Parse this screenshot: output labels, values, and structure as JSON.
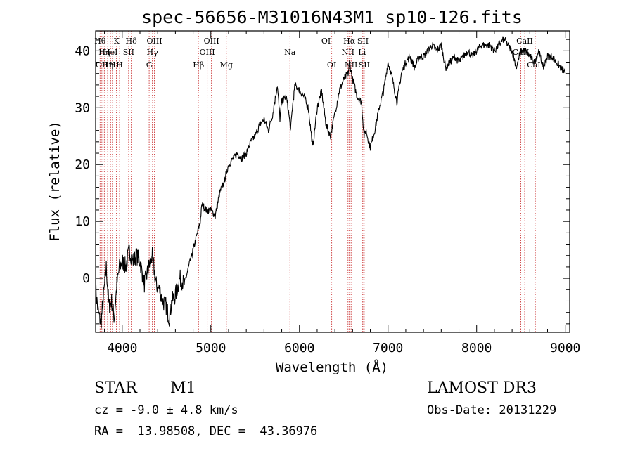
{
  "chart_data": {
    "type": "line",
    "title": "spec-56656-M31016N43M1_sp10-126.fits",
    "xlabel": "Wavelength (Å)",
    "ylabel": "Flux (relative)",
    "xlim": [
      3700,
      9050
    ],
    "ylim": [
      -9.5,
      43.5
    ],
    "x_ticks": [
      4000,
      5000,
      6000,
      7000,
      8000,
      9000
    ],
    "y_ticks": [
      0,
      10,
      20,
      30,
      40
    ],
    "grid": false,
    "series": [
      {
        "x": [
          3700,
          3730,
          3760,
          3790,
          3820,
          3850,
          3880,
          3910,
          3940,
          3970,
          4000,
          4040,
          4080,
          4120,
          4160,
          4200,
          4250,
          4300,
          4340,
          4380,
          4420,
          4460,
          4500,
          4530,
          4560,
          4600,
          4650,
          4700,
          4750,
          4800,
          4850,
          4880,
          4900,
          4950,
          5000,
          5050,
          5100,
          5150,
          5200,
          5250,
          5300,
          5350,
          5400,
          5450,
          5500,
          5550,
          5600,
          5650,
          5700,
          5750,
          5780,
          5800,
          5850,
          5880,
          5900,
          5920,
          5950,
          6000,
          6050,
          6100,
          6150,
          6200,
          6250,
          6300,
          6350,
          6400,
          6450,
          6500,
          6550,
          6565,
          6600,
          6650,
          6700,
          6730,
          6750,
          6800,
          6850,
          6900,
          6950,
          7000,
          7050,
          7100,
          7150,
          7200,
          7250,
          7300,
          7350,
          7400,
          7450,
          7500,
          7550,
          7600,
          7650,
          7700,
          7750,
          7800,
          7850,
          7900,
          7950,
          8000,
          8050,
          8100,
          8150,
          8200,
          8250,
          8300,
          8320,
          8350,
          8400,
          8450,
          8500,
          8550,
          8600,
          8650,
          8700,
          8750,
          8800,
          8850,
          8900,
          8950,
          9000
        ],
        "y": [
          -2,
          -6,
          -8,
          -3,
          2,
          -5,
          -4,
          -7,
          -1,
          2,
          3,
          2,
          5,
          3,
          4,
          3,
          -1,
          2,
          4,
          -1,
          -2,
          -4,
          -5,
          -7,
          -4,
          -3,
          0,
          -1,
          2,
          5,
          8,
          10,
          13,
          12,
          12,
          11,
          15,
          17,
          20,
          21,
          22,
          21,
          22,
          24,
          25,
          27,
          28,
          26,
          29,
          34,
          28,
          31,
          32,
          29,
          26,
          30,
          34,
          33,
          32,
          30,
          23,
          30,
          33,
          27,
          25,
          29,
          33,
          35,
          36,
          38,
          35,
          32,
          31,
          25,
          26,
          23,
          26,
          30,
          33,
          38,
          35,
          31,
          36,
          38,
          39,
          37,
          39,
          39,
          40,
          41,
          40,
          41,
          37,
          38,
          39,
          38,
          39,
          40,
          39,
          40,
          41,
          41,
          41,
          40,
          41,
          42,
          42,
          41,
          40,
          37,
          40,
          40,
          39,
          38,
          40,
          37,
          39,
          39,
          38,
          37,
          36
        ]
      }
    ],
    "line_labels": [
      {
        "wl": 3750,
        "label": "Hθ",
        "row": 1
      },
      {
        "wl": 3770,
        "label": "OII",
        "row": 3
      },
      {
        "wl": 3798,
        "label": "Hη",
        "row": 2
      },
      {
        "wl": 3835,
        "label": "Hη",
        "row": 3
      },
      {
        "wl": 3869,
        "label": "HeI",
        "row": 2
      },
      {
        "wl": 3889,
        "label": "H",
        "row": 3
      },
      {
        "wl": 3934,
        "label": "K",
        "row": 1
      },
      {
        "wl": 3970,
        "label": "H",
        "row": 3
      },
      {
        "wl": 4072,
        "label": "SII",
        "row": 2
      },
      {
        "wl": 4102,
        "label": "Hδ",
        "row": 1
      },
      {
        "wl": 4304,
        "label": "G",
        "row": 3
      },
      {
        "wl": 4340,
        "label": "Hγ",
        "row": 2
      },
      {
        "wl": 4363,
        "label": "OIII",
        "row": 1
      },
      {
        "wl": 4861,
        "label": "Hβ",
        "row": 3
      },
      {
        "wl": 4959,
        "label": "OIII",
        "row": 2
      },
      {
        "wl": 5007,
        "label": "OIII",
        "row": 1
      },
      {
        "wl": 5175,
        "label": "Mg",
        "row": 3
      },
      {
        "wl": 5893,
        "label": "Na",
        "row": 2
      },
      {
        "wl": 6300,
        "label": "OI",
        "row": 1
      },
      {
        "wl": 6364,
        "label": "OI",
        "row": 3
      },
      {
        "wl": 6548,
        "label": "NII",
        "row": 2
      },
      {
        "wl": 6563,
        "label": "Hα",
        "row": 1
      },
      {
        "wl": 6583,
        "label": "NII",
        "row": 3
      },
      {
        "wl": 6707,
        "label": "Li",
        "row": 2
      },
      {
        "wl": 6716,
        "label": "SII",
        "row": 1
      },
      {
        "wl": 6731,
        "label": "SII",
        "row": 3
      },
      {
        "wl": 8498,
        "label": "CaII",
        "row": 2
      },
      {
        "wl": 8542,
        "label": "CaII",
        "row": 1
      },
      {
        "wl": 8662,
        "label": "CaII",
        "row": 3
      }
    ]
  },
  "info": {
    "object_class": "STAR",
    "subclass": "M1",
    "cz": "cz = -9.0 ± 4.8 km/s",
    "coords": "RA =  13.98508, DEC =  43.36976",
    "survey": "LAMOST DR3",
    "obs_date": "Obs-Date: 20131229"
  },
  "colors": {
    "line_marker": "#cc3a3a",
    "spectrum": "#000000"
  }
}
